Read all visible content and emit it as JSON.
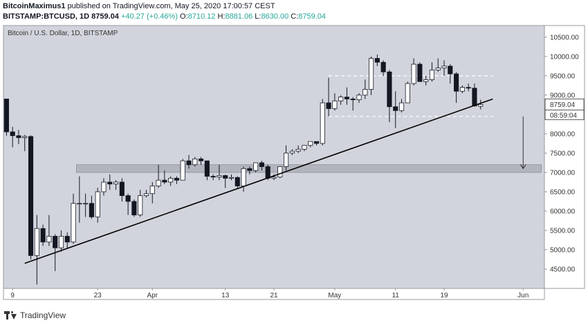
{
  "header": {
    "author": "BitcoinMaximus1",
    "published_text": "published on TradingView.com, May 25, 2020 17:00:57 CEST",
    "symbol": "BITSTAMP:BTCUSD, 1D",
    "last": "8759.04",
    "change": "+40.27 (+0.46%)",
    "o_label": "O:",
    "o_value": "8710.12",
    "h_label": "H:",
    "h_value": "8881.06",
    "l_label": "L:",
    "l_value": "8630.00",
    "c_label": "C:",
    "c_value": "8759.04"
  },
  "footer": {
    "brand": "TradingView"
  },
  "colors": {
    "plot_bg": "#d1d4dc",
    "border": "#9598a1",
    "up_fill": "#ffffff",
    "down_fill": "#131722",
    "zone": "#b2b5be",
    "trendline": "#000000"
  },
  "chart_data": {
    "type": "candlestick",
    "title": "Bitcoin / U.S. Dollar, 1D, BITSTAMP",
    "ylim": [
      4000,
      10800
    ],
    "y_ticks": [
      "10500.00",
      "10000.00",
      "9500.00",
      "9000.00",
      "8500.00",
      "8000.00",
      "7500.00",
      "7000.00",
      "6500.00",
      "6000.00",
      "5500.00",
      "5000.00",
      "4500.00"
    ],
    "y_tick_values": [
      10500,
      10000,
      9500,
      9000,
      8500,
      8000,
      7500,
      7000,
      6500,
      6000,
      5500,
      5000,
      4500
    ],
    "x_range": [
      "2020-03-08",
      "2020-06-04"
    ],
    "x_ticks": [
      {
        "label": "9",
        "date": "2020-03-09"
      },
      {
        "label": "23",
        "date": "2020-03-23"
      },
      {
        "label": "Apr",
        "date": "2020-04-01"
      },
      {
        "label": "13",
        "date": "2020-04-13"
      },
      {
        "label": "21",
        "date": "2020-04-21"
      },
      {
        "label": "May",
        "date": "2020-05-01"
      },
      {
        "label": "11",
        "date": "2020-05-11"
      },
      {
        "label": "19",
        "date": "2020-05-19"
      },
      {
        "label": "Jun",
        "date": "2020-06-01"
      }
    ],
    "price_label": "8759.04",
    "countdown_label": "08:59:04",
    "candles": [
      {
        "t": "2020-03-08",
        "o": 8900,
        "h": 8900,
        "l": 7950,
        "c": 8050
      },
      {
        "t": "2020-03-09",
        "o": 8050,
        "h": 8180,
        "l": 7650,
        "c": 7950
      },
      {
        "t": "2020-03-10",
        "o": 7950,
        "h": 8100,
        "l": 7730,
        "c": 7900
      },
      {
        "t": "2020-03-11",
        "o": 7900,
        "h": 7970,
        "l": 7550,
        "c": 7930
      },
      {
        "t": "2020-03-12",
        "o": 7930,
        "h": 7960,
        "l": 4750,
        "c": 4850
      },
      {
        "t": "2020-03-13",
        "o": 4850,
        "h": 5900,
        "l": 4100,
        "c": 5550
      },
      {
        "t": "2020-03-14",
        "o": 5550,
        "h": 5650,
        "l": 5100,
        "c": 5200
      },
      {
        "t": "2020-03-15",
        "o": 5200,
        "h": 5900,
        "l": 5100,
        "c": 5350
      },
      {
        "t": "2020-03-16",
        "o": 5350,
        "h": 5400,
        "l": 4450,
        "c": 5050
      },
      {
        "t": "2020-03-17",
        "o": 5050,
        "h": 5500,
        "l": 4950,
        "c": 5350
      },
      {
        "t": "2020-03-18",
        "o": 5350,
        "h": 5450,
        "l": 5050,
        "c": 5200
      },
      {
        "t": "2020-03-19",
        "o": 5200,
        "h": 6450,
        "l": 5150,
        "c": 6200
      },
      {
        "t": "2020-03-20",
        "o": 6200,
        "h": 6900,
        "l": 5700,
        "c": 6200
      },
      {
        "t": "2020-03-21",
        "o": 6200,
        "h": 6450,
        "l": 5850,
        "c": 6200
      },
      {
        "t": "2020-03-22",
        "o": 6200,
        "h": 6400,
        "l": 5800,
        "c": 5850
      },
      {
        "t": "2020-03-23",
        "o": 5850,
        "h": 6600,
        "l": 5700,
        "c": 6500
      },
      {
        "t": "2020-03-24",
        "o": 6500,
        "h": 6850,
        "l": 6400,
        "c": 6750
      },
      {
        "t": "2020-03-25",
        "o": 6750,
        "h": 6950,
        "l": 6550,
        "c": 6700
      },
      {
        "t": "2020-03-26",
        "o": 6700,
        "h": 6800,
        "l": 6550,
        "c": 6750
      },
      {
        "t": "2020-03-27",
        "o": 6750,
        "h": 6850,
        "l": 6250,
        "c": 6400
      },
      {
        "t": "2020-03-28",
        "o": 6400,
        "h": 6450,
        "l": 5900,
        "c": 6250
      },
      {
        "t": "2020-03-29",
        "o": 6250,
        "h": 6300,
        "l": 5850,
        "c": 5900
      },
      {
        "t": "2020-03-30",
        "o": 5900,
        "h": 6550,
        "l": 5850,
        "c": 6400
      },
      {
        "t": "2020-03-31",
        "o": 6400,
        "h": 6550,
        "l": 6350,
        "c": 6450
      },
      {
        "t": "2020-04-01",
        "o": 6450,
        "h": 6750,
        "l": 6200,
        "c": 6650
      },
      {
        "t": "2020-04-02",
        "o": 6650,
        "h": 7200,
        "l": 6600,
        "c": 6800
      },
      {
        "t": "2020-04-03",
        "o": 6800,
        "h": 7050,
        "l": 6700,
        "c": 6750
      },
      {
        "t": "2020-04-04",
        "o": 6750,
        "h": 6900,
        "l": 6650,
        "c": 6850
      },
      {
        "t": "2020-04-05",
        "o": 6850,
        "h": 6900,
        "l": 6700,
        "c": 6800
      },
      {
        "t": "2020-04-06",
        "o": 6800,
        "h": 7350,
        "l": 6800,
        "c": 7300
      },
      {
        "t": "2020-04-07",
        "o": 7300,
        "h": 7450,
        "l": 7100,
        "c": 7200
      },
      {
        "t": "2020-04-08",
        "o": 7200,
        "h": 7400,
        "l": 7150,
        "c": 7350
      },
      {
        "t": "2020-04-09",
        "o": 7350,
        "h": 7400,
        "l": 7200,
        "c": 7300
      },
      {
        "t": "2020-04-10",
        "o": 7300,
        "h": 7300,
        "l": 6800,
        "c": 6900
      },
      {
        "t": "2020-04-11",
        "o": 6900,
        "h": 6950,
        "l": 6800,
        "c": 6880
      },
      {
        "t": "2020-04-12",
        "o": 6880,
        "h": 7200,
        "l": 6800,
        "c": 6920
      },
      {
        "t": "2020-04-13",
        "o": 6920,
        "h": 6940,
        "l": 6600,
        "c": 6850
      },
      {
        "t": "2020-04-14",
        "o": 6850,
        "h": 6950,
        "l": 6800,
        "c": 6870
      },
      {
        "t": "2020-04-15",
        "o": 6870,
        "h": 6900,
        "l": 6600,
        "c": 6650
      },
      {
        "t": "2020-04-16",
        "o": 6650,
        "h": 7150,
        "l": 6500,
        "c": 7100
      },
      {
        "t": "2020-04-17",
        "o": 7100,
        "h": 7150,
        "l": 6950,
        "c": 7050
      },
      {
        "t": "2020-04-18",
        "o": 7050,
        "h": 7250,
        "l": 7000,
        "c": 7250
      },
      {
        "t": "2020-04-19",
        "o": 7250,
        "h": 7300,
        "l": 7050,
        "c": 7150
      },
      {
        "t": "2020-04-20",
        "o": 7150,
        "h": 7200,
        "l": 6800,
        "c": 6850
      },
      {
        "t": "2020-04-21",
        "o": 6850,
        "h": 6950,
        "l": 6800,
        "c": 6880
      },
      {
        "t": "2020-04-22",
        "o": 6880,
        "h": 7150,
        "l": 6850,
        "c": 7150
      },
      {
        "t": "2020-04-23",
        "o": 7150,
        "h": 7700,
        "l": 7050,
        "c": 7500
      },
      {
        "t": "2020-04-24",
        "o": 7500,
        "h": 7600,
        "l": 7450,
        "c": 7550
      },
      {
        "t": "2020-04-25",
        "o": 7550,
        "h": 7700,
        "l": 7500,
        "c": 7600
      },
      {
        "t": "2020-04-26",
        "o": 7600,
        "h": 7700,
        "l": 7550,
        "c": 7700
      },
      {
        "t": "2020-04-27",
        "o": 7700,
        "h": 7800,
        "l": 7650,
        "c": 7800
      },
      {
        "t": "2020-04-28",
        "o": 7800,
        "h": 7800,
        "l": 7700,
        "c": 7750
      },
      {
        "t": "2020-04-29",
        "o": 7750,
        "h": 8900,
        "l": 7700,
        "c": 8800
      },
      {
        "t": "2020-04-30",
        "o": 8800,
        "h": 9450,
        "l": 8450,
        "c": 8650
      },
      {
        "t": "2020-05-01",
        "o": 8650,
        "h": 9050,
        "l": 8600,
        "c": 8850
      },
      {
        "t": "2020-05-02",
        "o": 8850,
        "h": 9000,
        "l": 8750,
        "c": 8950
      },
      {
        "t": "2020-05-03",
        "o": 8950,
        "h": 9200,
        "l": 8750,
        "c": 8900
      },
      {
        "t": "2020-05-04",
        "o": 8900,
        "h": 8950,
        "l": 8600,
        "c": 8880
      },
      {
        "t": "2020-05-05",
        "o": 8880,
        "h": 9050,
        "l": 8800,
        "c": 9000
      },
      {
        "t": "2020-05-06",
        "o": 9000,
        "h": 9400,
        "l": 8900,
        "c": 9150
      },
      {
        "t": "2020-05-07",
        "o": 9150,
        "h": 10000,
        "l": 9000,
        "c": 9950
      },
      {
        "t": "2020-05-08",
        "o": 9950,
        "h": 10050,
        "l": 9750,
        "c": 9850
      },
      {
        "t": "2020-05-09",
        "o": 9850,
        "h": 9900,
        "l": 9500,
        "c": 9600
      },
      {
        "t": "2020-05-10",
        "o": 9600,
        "h": 9650,
        "l": 8300,
        "c": 8700
      },
      {
        "t": "2020-05-11",
        "o": 8700,
        "h": 9100,
        "l": 8150,
        "c": 8600
      },
      {
        "t": "2020-05-12",
        "o": 8600,
        "h": 8900,
        "l": 8550,
        "c": 8800
      },
      {
        "t": "2020-05-13",
        "o": 8800,
        "h": 9350,
        "l": 8800,
        "c": 9300
      },
      {
        "t": "2020-05-14",
        "o": 9300,
        "h": 9950,
        "l": 9250,
        "c": 9800
      },
      {
        "t": "2020-05-15",
        "o": 9800,
        "h": 9850,
        "l": 9350,
        "c": 9350
      },
      {
        "t": "2020-05-16",
        "o": 9350,
        "h": 9500,
        "l": 9250,
        "c": 9400
      },
      {
        "t": "2020-05-17",
        "o": 9400,
        "h": 9850,
        "l": 9350,
        "c": 9650
      },
      {
        "t": "2020-05-18",
        "o": 9650,
        "h": 9950,
        "l": 9600,
        "c": 9700
      },
      {
        "t": "2020-05-19",
        "o": 9700,
        "h": 9900,
        "l": 9500,
        "c": 9750
      },
      {
        "t": "2020-05-20",
        "o": 9750,
        "h": 9800,
        "l": 9300,
        "c": 9550
      },
      {
        "t": "2020-05-21",
        "o": 9550,
        "h": 9600,
        "l": 8800,
        "c": 9100
      },
      {
        "t": "2020-05-22",
        "o": 9100,
        "h": 9250,
        "l": 9050,
        "c": 9200
      },
      {
        "t": "2020-05-23",
        "o": 9200,
        "h": 9300,
        "l": 9100,
        "c": 9180
      },
      {
        "t": "2020-05-24",
        "o": 9180,
        "h": 9300,
        "l": 8700,
        "c": 8720
      },
      {
        "t": "2020-05-25",
        "o": 8710.12,
        "h": 8881.06,
        "l": 8630,
        "c": 8759.04
      }
    ],
    "annotations": {
      "trendline": {
        "from": {
          "t": "2020-03-11",
          "v": 4650
        },
        "to": {
          "t": "2020-05-27",
          "v": 8900
        }
      },
      "support_zone": {
        "from": "2020-03-20",
        "to": "2020-06-04",
        "low": 7000,
        "high": 7200
      },
      "range_top": {
        "from": "2020-04-30",
        "to": "2020-05-27",
        "v": 9500
      },
      "range_bottom": {
        "from": "2020-04-30",
        "to": "2020-05-27",
        "v": 8450
      },
      "arrow": {
        "t": "2020-06-01",
        "from": 8450,
        "to": 7100
      }
    }
  }
}
